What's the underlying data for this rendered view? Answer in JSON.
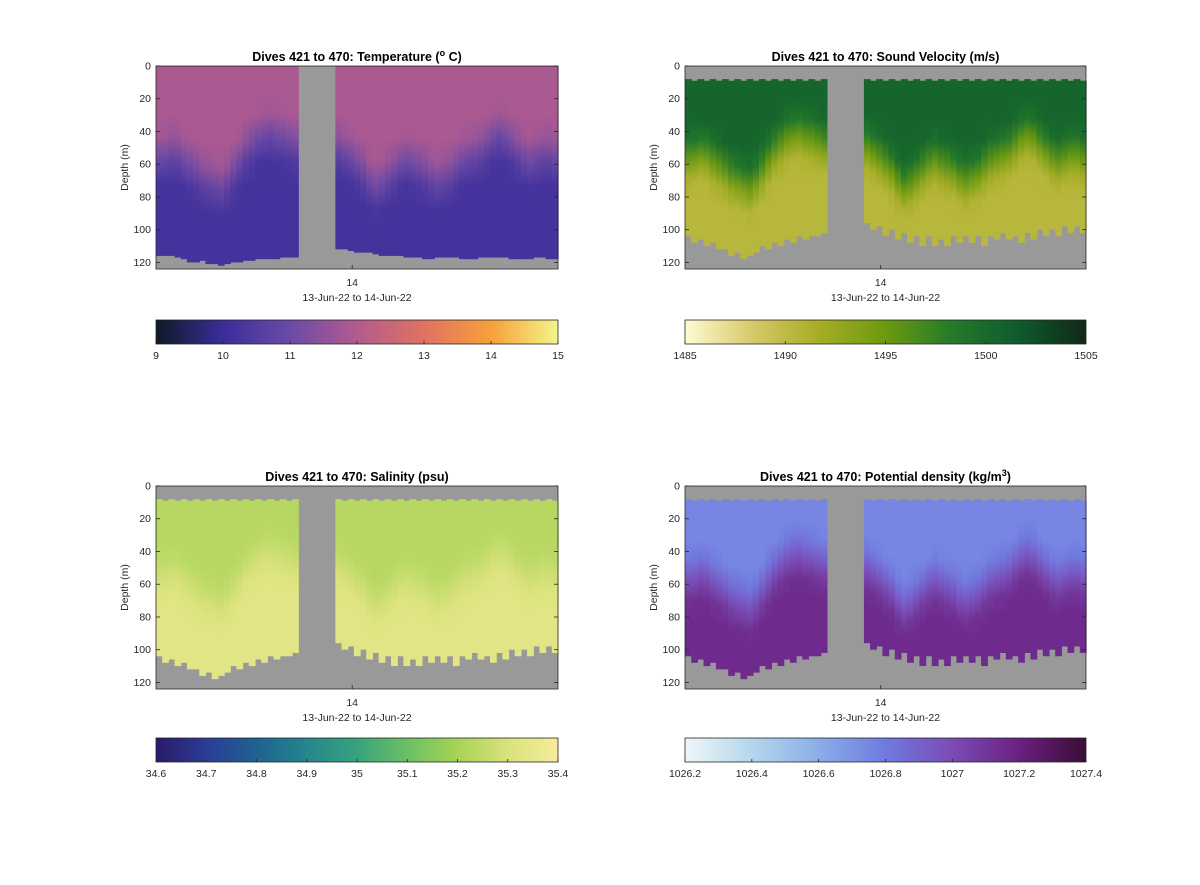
{
  "figure": {
    "panels": [
      {
        "id": "temperature",
        "title_prefix": "Dives 421 to 470: Temperature (",
        "title_sup": "o",
        "title_suffix": " C)",
        "ylabel": "Depth (m)",
        "xtick_label": "14",
        "xlabel": "13-Jun-22 to 14-Jun-22",
        "colorbar_ticks": [
          "9",
          "10",
          "11",
          "12",
          "13",
          "14",
          "15"
        ],
        "colormap": [
          "#0d1a26",
          "#3a2d9a",
          "#6b4aa6",
          "#b25b8f",
          "#e07261",
          "#f7a03a",
          "#f3f58a"
        ]
      },
      {
        "id": "sound-velocity",
        "title_prefix": "Dives 421 to 470: Sound Velocity (m/s)",
        "title_sup": "",
        "title_suffix": "",
        "ylabel": "Depth (m)",
        "xtick_label": "14",
        "xlabel": "13-Jun-22 to 14-Jun-22",
        "colorbar_ticks": [
          "1485",
          "1490",
          "1495",
          "1500",
          "1505"
        ],
        "colormap": [
          "#fdfbd2",
          "#d7c96a",
          "#a6ad25",
          "#6c9a10",
          "#237a2a",
          "#0f5a2e",
          "#102815"
        ]
      },
      {
        "id": "salinity",
        "title_prefix": "Dives 421 to 470: Salinity (psu)",
        "title_sup": "",
        "title_suffix": "",
        "ylabel": "Depth (m)",
        "xtick_label": "14",
        "xlabel": "13-Jun-22 to 14-Jun-22",
        "colorbar_ticks": [
          "34.6",
          "34.7",
          "34.8",
          "34.9",
          "35",
          "35.1",
          "35.2",
          "35.3",
          "35.4"
        ],
        "colormap": [
          "#2a1a68",
          "#2a3c96",
          "#1f6292",
          "#25868d",
          "#37a37e",
          "#6bc063",
          "#a7d356",
          "#d9e27b",
          "#f6ec9c"
        ]
      },
      {
        "id": "potential-density",
        "title_prefix": "Dives 421 to 470: Potential density (kg/m",
        "title_sup": "3",
        "title_suffix": ")",
        "ylabel": "Depth (m)",
        "xtick_label": "14",
        "xlabel": "13-Jun-22 to 14-Jun-22",
        "colorbar_ticks": [
          "1026.2",
          "1026.4",
          "1026.6",
          "1026.8",
          "1027",
          "1027.2",
          "1027.4"
        ],
        "colormap": [
          "#eef6f8",
          "#b4d6ec",
          "#8aaee8",
          "#7079e0",
          "#7b4bb5",
          "#6a2180",
          "#3b0c37"
        ]
      }
    ]
  },
  "chart_data": [
    {
      "type": "heatmap",
      "title": "Dives 421 to 470: Temperature (° C)",
      "xlabel": "13-Jun-22 to 14-Jun-22",
      "ylabel": "Depth (m)",
      "x_ticks": [
        "14"
      ],
      "y_ticks": [
        0,
        20,
        40,
        60,
        80,
        100,
        120
      ],
      "ylim": [
        124,
        0
      ],
      "y_reversed": true,
      "colorbar_range": [
        9,
        15
      ],
      "colorbar_ticks": [
        9,
        10,
        11,
        12,
        13,
        14,
        15
      ],
      "surface_value": 11.9,
      "deep_value": 10.2,
      "mixed_layer_depth_per_profile": [
        48,
        47,
        45,
        46,
        50,
        53,
        56,
        60,
        62,
        64,
        66,
        62,
        56,
        50,
        44,
        40,
        36,
        34,
        33,
        35,
        36,
        38,
        40,
        0,
        0,
        0,
        0,
        0,
        0,
        42,
        45,
        48,
        52,
        56,
        62,
        66,
        64,
        60,
        56,
        52,
        50,
        52,
        54,
        56,
        60,
        62,
        60,
        58,
        54,
        50,
        48,
        46,
        44,
        40,
        36,
        34,
        36,
        40,
        44,
        48,
        50,
        48,
        46,
        46,
        48
      ],
      "max_depth_per_profile": [
        116,
        116,
        116,
        117,
        118,
        120,
        120,
        119,
        121,
        121,
        122,
        121,
        120,
        120,
        119,
        119,
        118,
        118,
        118,
        118,
        117,
        117,
        117,
        0,
        0,
        0,
        0,
        0,
        0,
        112,
        112,
        113,
        114,
        114,
        114,
        115,
        116,
        116,
        116,
        116,
        117,
        117,
        117,
        118,
        118,
        117,
        117,
        117,
        117,
        118,
        118,
        118,
        117,
        117,
        117,
        117,
        117,
        118,
        118,
        118,
        118,
        117,
        117,
        118,
        118
      ],
      "gap_profiles": [
        23,
        28
      ]
    },
    {
      "type": "heatmap",
      "title": "Dives 421 to 470: Sound Velocity (m/s)",
      "xlabel": "13-Jun-22 to 14-Jun-22",
      "ylabel": "Depth (m)",
      "x_ticks": [
        "14"
      ],
      "y_ticks": [
        0,
        20,
        40,
        60,
        80,
        100,
        120
      ],
      "ylim": [
        124,
        0
      ],
      "y_reversed": true,
      "colorbar_range": [
        1485,
        1505
      ],
      "colorbar_ticks": [
        1485,
        1490,
        1495,
        1500,
        1505
      ],
      "surface_value": 1500.5,
      "deep_value": 1490.5,
      "mixed_layer_depth_per_profile": [
        48,
        47,
        45,
        46,
        50,
        53,
        56,
        60,
        62,
        64,
        66,
        62,
        56,
        50,
        44,
        40,
        36,
        34,
        33,
        35,
        36,
        38,
        40,
        0,
        0,
        0,
        0,
        0,
        0,
        42,
        45,
        48,
        52,
        56,
        62,
        66,
        64,
        60,
        56,
        52,
        50,
        52,
        54,
        56,
        60,
        62,
        60,
        58,
        54,
        50,
        48,
        46,
        44,
        40,
        36,
        34,
        36,
        40,
        44,
        48,
        50,
        48,
        46,
        46,
        48
      ],
      "top_depth_per_profile": [
        8,
        9,
        8,
        9,
        8,
        9,
        8,
        9,
        8,
        9,
        8,
        9,
        8,
        9,
        8,
        9,
        8,
        9,
        8,
        9,
        8,
        9,
        8,
        0,
        0,
        0,
        0,
        0,
        0,
        8,
        9,
        8,
        9,
        8,
        9,
        8,
        9,
        8,
        9,
        8,
        9,
        8,
        9,
        8,
        9,
        8,
        9,
        8,
        9,
        8,
        9,
        8,
        9,
        8,
        9,
        8,
        9,
        8,
        9,
        8,
        9,
        8,
        9,
        8,
        9
      ],
      "max_depth_per_profile": [
        104,
        108,
        106,
        110,
        108,
        112,
        112,
        116,
        114,
        118,
        116,
        114,
        110,
        112,
        108,
        110,
        106,
        108,
        104,
        106,
        104,
        104,
        102,
        0,
        0,
        0,
        0,
        0,
        0,
        96,
        100,
        98,
        104,
        100,
        106,
        102,
        108,
        104,
        110,
        104,
        110,
        106,
        110,
        104,
        108,
        104,
        108,
        104,
        110,
        104,
        106,
        102,
        106,
        104,
        108,
        102,
        106,
        100,
        104,
        100,
        104,
        98,
        102,
        98,
        102
      ],
      "gap_profiles": [
        23,
        28
      ]
    },
    {
      "type": "heatmap",
      "title": "Dives 421 to 470: Salinity (psu)",
      "xlabel": "13-Jun-22 to 14-Jun-22",
      "ylabel": "Depth (m)",
      "x_ticks": [
        "14"
      ],
      "y_ticks": [
        0,
        20,
        40,
        60,
        80,
        100,
        120
      ],
      "ylim": [
        124,
        0
      ],
      "y_reversed": true,
      "colorbar_range": [
        34.6,
        35.4
      ],
      "colorbar_ticks": [
        34.6,
        34.7,
        34.8,
        34.9,
        35,
        35.1,
        35.2,
        35.3,
        35.4
      ],
      "surface_value": 35.23,
      "deep_value": 35.33,
      "mixed_layer_depth_per_profile": [
        48,
        47,
        45,
        46,
        50,
        53,
        56,
        60,
        62,
        64,
        66,
        62,
        56,
        50,
        44,
        40,
        36,
        34,
        33,
        35,
        36,
        38,
        40,
        0,
        0,
        0,
        0,
        0,
        0,
        42,
        45,
        48,
        52,
        56,
        62,
        66,
        64,
        60,
        56,
        52,
        50,
        52,
        54,
        56,
        60,
        62,
        60,
        58,
        54,
        50,
        48,
        46,
        44,
        40,
        36,
        34,
        36,
        40,
        44,
        48,
        50,
        48,
        46,
        46,
        48
      ],
      "top_depth_per_profile": [
        8,
        9,
        8,
        9,
        8,
        9,
        8,
        9,
        8,
        9,
        8,
        9,
        8,
        9,
        8,
        9,
        8,
        9,
        8,
        9,
        8,
        9,
        8,
        0,
        0,
        0,
        0,
        0,
        0,
        8,
        9,
        8,
        9,
        8,
        9,
        8,
        9,
        8,
        9,
        8,
        9,
        8,
        9,
        8,
        9,
        8,
        9,
        8,
        9,
        8,
        9,
        8,
        9,
        8,
        9,
        8,
        9,
        8,
        9,
        8,
        9,
        8,
        9,
        8,
        9
      ],
      "max_depth_per_profile": [
        104,
        108,
        106,
        110,
        108,
        112,
        112,
        116,
        114,
        118,
        116,
        114,
        110,
        112,
        108,
        110,
        106,
        108,
        104,
        106,
        104,
        104,
        102,
        0,
        0,
        0,
        0,
        0,
        0,
        96,
        100,
        98,
        104,
        100,
        106,
        102,
        108,
        104,
        110,
        104,
        110,
        106,
        110,
        104,
        108,
        104,
        108,
        104,
        110,
        104,
        106,
        102,
        106,
        104,
        108,
        102,
        106,
        100,
        104,
        100,
        104,
        98,
        102,
        98,
        102
      ],
      "gap_profiles": [
        23,
        28
      ]
    },
    {
      "type": "heatmap",
      "title": "Dives 421 to 470: Potential density (kg/m³)",
      "xlabel": "13-Jun-22 to 14-Jun-22",
      "ylabel": "Depth (m)",
      "x_ticks": [
        "14"
      ],
      "y_ticks": [
        0,
        20,
        40,
        60,
        80,
        100,
        120
      ],
      "ylim": [
        124,
        0
      ],
      "y_reversed": true,
      "colorbar_range": [
        1026.2,
        1027.4
      ],
      "colorbar_ticks": [
        1026.2,
        1026.4,
        1026.6,
        1026.8,
        1027,
        1027.2,
        1027.4
      ],
      "surface_value": 1026.75,
      "deep_value": 1027.15,
      "mixed_layer_depth_per_profile": [
        48,
        47,
        45,
        46,
        50,
        53,
        56,
        60,
        62,
        64,
        66,
        62,
        56,
        50,
        44,
        40,
        36,
        34,
        33,
        35,
        36,
        38,
        40,
        0,
        0,
        0,
        0,
        0,
        0,
        42,
        45,
        48,
        52,
        56,
        62,
        66,
        64,
        60,
        56,
        52,
        50,
        52,
        54,
        56,
        60,
        62,
        60,
        58,
        54,
        50,
        48,
        46,
        44,
        40,
        36,
        34,
        36,
        40,
        44,
        48,
        50,
        48,
        46,
        46,
        48
      ],
      "top_depth_per_profile": [
        8,
        9,
        8,
        9,
        8,
        9,
        8,
        9,
        8,
        9,
        8,
        9,
        8,
        9,
        8,
        9,
        8,
        9,
        8,
        9,
        8,
        9,
        8,
        0,
        0,
        0,
        0,
        0,
        0,
        8,
        9,
        8,
        9,
        8,
        9,
        8,
        9,
        8,
        9,
        8,
        9,
        8,
        9,
        8,
        9,
        8,
        9,
        8,
        9,
        8,
        9,
        8,
        9,
        8,
        9,
        8,
        9,
        8,
        9,
        8,
        9,
        8,
        9,
        8,
        9
      ],
      "max_depth_per_profile": [
        104,
        108,
        106,
        110,
        108,
        112,
        112,
        116,
        114,
        118,
        116,
        114,
        110,
        112,
        108,
        110,
        106,
        108,
        104,
        106,
        104,
        104,
        102,
        0,
        0,
        0,
        0,
        0,
        0,
        96,
        100,
        98,
        104,
        100,
        106,
        102,
        108,
        104,
        110,
        104,
        110,
        106,
        110,
        104,
        108,
        104,
        108,
        104,
        110,
        104,
        106,
        102,
        106,
        104,
        108,
        102,
        106,
        100,
        104,
        100,
        104,
        98,
        102,
        98,
        102
      ],
      "gap_profiles": [
        23,
        28
      ]
    }
  ]
}
